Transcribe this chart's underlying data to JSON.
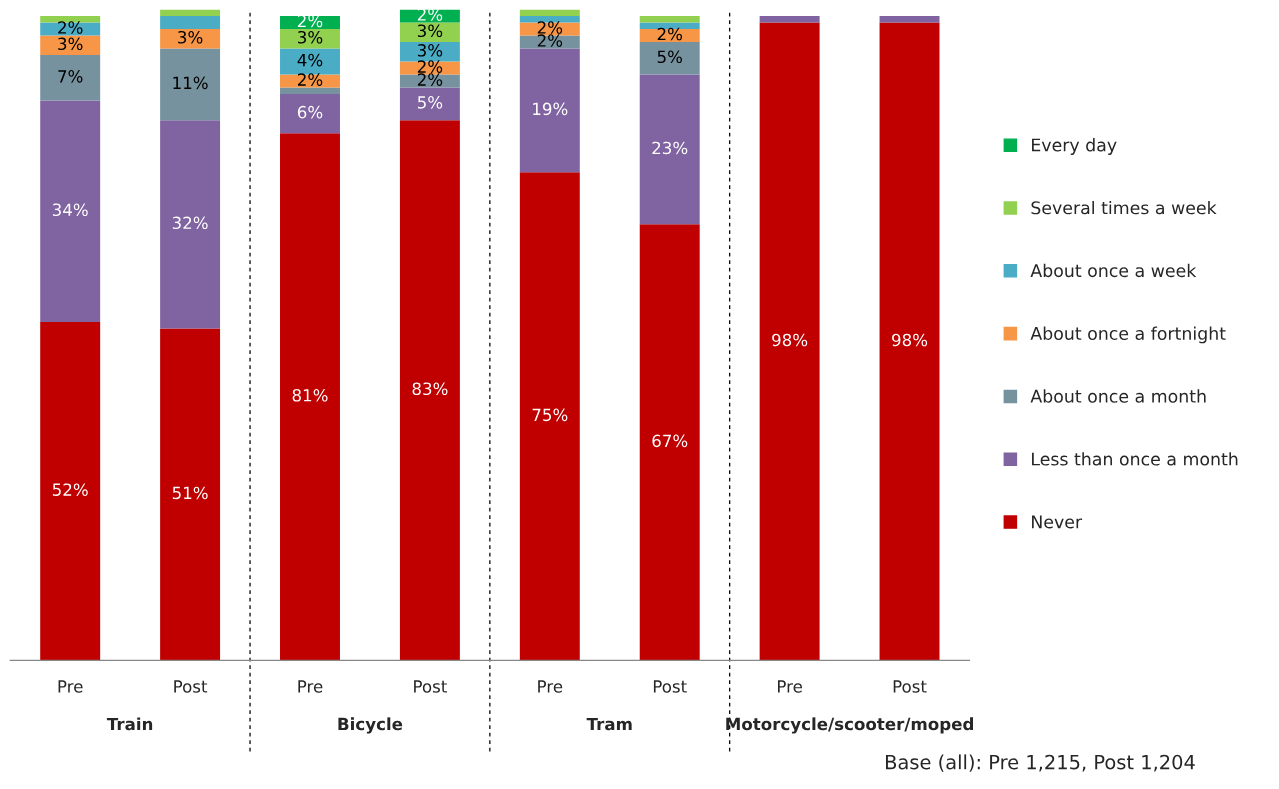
{
  "chart_data": {
    "type": "bar",
    "stacked": true,
    "categories": [
      "Pre",
      "Post",
      "Pre",
      "Post",
      "Pre",
      "Post",
      "Pre",
      "Post"
    ],
    "ylim": [
      0,
      100
    ],
    "tick_labels": "x",
    "grid": false,
    "legend": "right",
    "series": [
      {
        "name": "Never",
        "color": "#c00000",
        "values": [
          52,
          51,
          81,
          83,
          75,
          67,
          98,
          98
        ],
        "value_labels": [
          "52%",
          "51%",
          "81%",
          "83%",
          "75%",
          "67%",
          "98%",
          "98%"
        ]
      },
      {
        "name": "Less than once a month",
        "color": "#8064a2",
        "values": [
          34,
          32,
          6,
          5,
          19,
          23,
          1,
          1
        ],
        "value_labels": [
          "34%",
          "32%",
          "6%",
          "5%",
          "19%",
          "23%",
          null,
          null
        ]
      },
      {
        "name": "About once a month",
        "color": "#77929f",
        "values": [
          7,
          11,
          1,
          2,
          2,
          5,
          0,
          0
        ],
        "value_labels": [
          "7%",
          "11%",
          null,
          "2%",
          "2%",
          "5%",
          null,
          null
        ]
      },
      {
        "name": "About once a fortnight",
        "color": "#f79646",
        "values": [
          3,
          3,
          2,
          2,
          2,
          2,
          0,
          0
        ],
        "value_labels": [
          "3%",
          "3%",
          "2%",
          "2%",
          "2%",
          "2%",
          null,
          null
        ]
      },
      {
        "name": "About once a week",
        "color": "#4bacc6",
        "values": [
          2,
          2,
          4,
          3,
          1,
          1,
          0,
          0
        ],
        "value_labels": [
          "2%",
          null,
          "4%",
          "3%",
          null,
          null,
          null,
          null
        ]
      },
      {
        "name": "Several times a week",
        "color": "#92d050",
        "values": [
          1,
          1,
          3,
          3,
          1,
          1,
          0,
          0
        ],
        "value_labels": [
          null,
          null,
          "3%",
          "3%",
          null,
          null,
          null,
          null
        ]
      },
      {
        "name": "Every day",
        "color": "#00b050",
        "values": [
          0,
          0,
          2,
          2,
          0,
          0,
          0,
          0
        ],
        "value_labels": [
          null,
          null,
          "2%",
          "2%",
          null,
          null,
          null,
          null
        ]
      }
    ],
    "annotations": [
      "Train",
      "Bicycle",
      "Tram",
      "Motorcycle/scooter/moped",
      "Base (all): Pre 1,215, Post 1,204"
    ]
  }
}
